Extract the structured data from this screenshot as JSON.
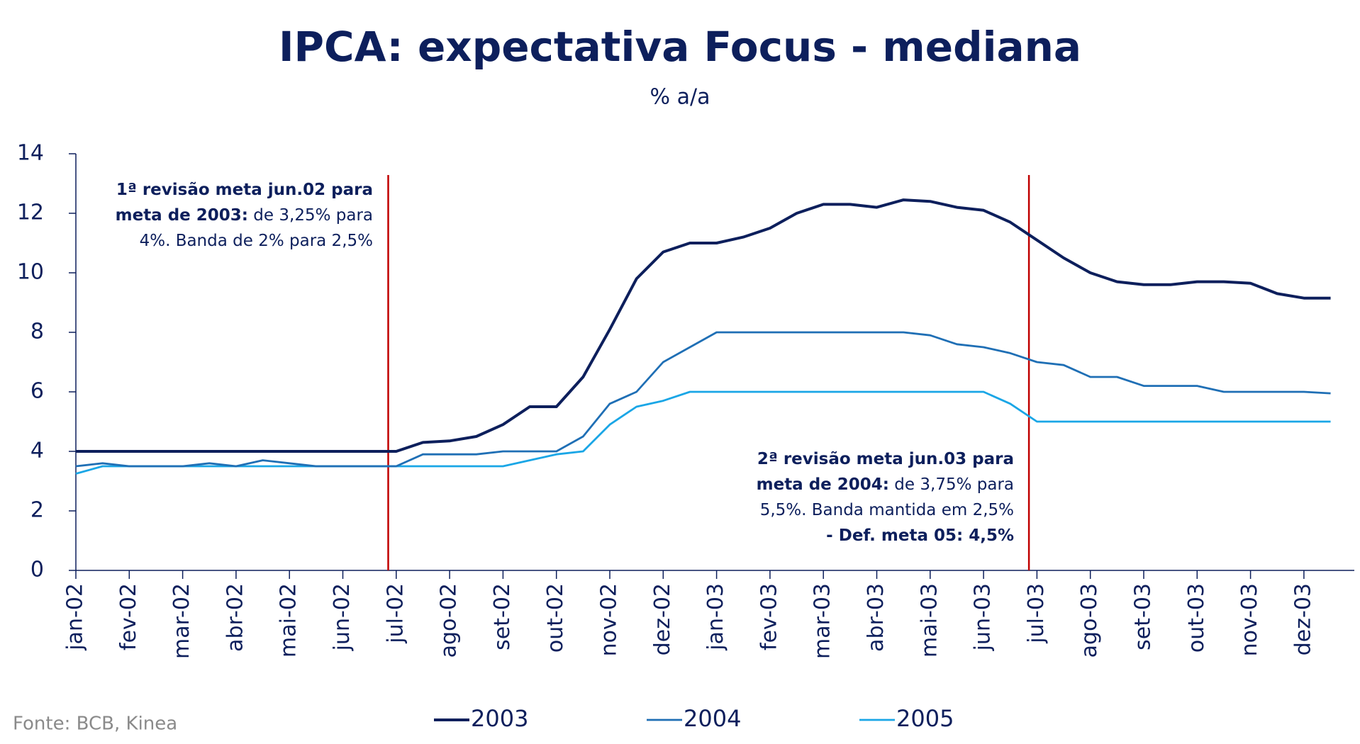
{
  "chart_data": {
    "type": "line",
    "title": "IPCA: expectativa Focus - mediana",
    "subtitle": "% a/a",
    "source": "Fonte: BCB, Kinea",
    "categories": [
      "jan-02",
      null,
      "fev-02",
      null,
      "mar-02",
      null,
      "abr-02",
      null,
      "mai-02",
      null,
      "jun-02",
      null,
      "jul-02",
      null,
      "ago-02",
      null,
      "set-02",
      null,
      "out-02",
      null,
      "nov-02",
      null,
      "dez-02",
      null,
      "jan-03",
      null,
      "fev-03",
      null,
      "mar-03",
      null,
      "abr-03",
      null,
      "mai-03",
      null,
      "jun-03",
      null,
      "jul-03",
      null,
      "ago-03",
      null,
      "set-03",
      null,
      "out-03",
      null,
      "nov-03",
      null,
      "dez-03",
      null
    ],
    "series": [
      {
        "name": "2003",
        "color": "#0d1f5c",
        "values": [
          4,
          4,
          4,
          4,
          4,
          4,
          4,
          4,
          4,
          4,
          4,
          4,
          4.0,
          4.3,
          4.35,
          4.5,
          4.9,
          5.5,
          5.5,
          6.5,
          8.1,
          9.8,
          10.7,
          11.0,
          11.0,
          11.2,
          11.5,
          12.0,
          12.3,
          12.3,
          12.2,
          12.45,
          12.4,
          12.2,
          12.1,
          11.7,
          11.1,
          10.5,
          10.0,
          9.7,
          9.6,
          9.6,
          9.7,
          9.7,
          9.65,
          9.3,
          9.15,
          9.15
        ]
      },
      {
        "name": "2004",
        "color": "#1f6fb5",
        "values": [
          3.5,
          3.6,
          3.5,
          3.5,
          3.5,
          3.6,
          3.5,
          3.7,
          3.6,
          3.5,
          3.5,
          3.5,
          3.5,
          3.9,
          3.9,
          3.9,
          4.0,
          4.0,
          4.0,
          4.5,
          5.6,
          6.0,
          7.0,
          7.5,
          8.0,
          8.0,
          8.0,
          8.0,
          8.0,
          8.0,
          8.0,
          8.0,
          7.9,
          7.6,
          7.5,
          7.3,
          7.0,
          6.9,
          6.5,
          6.5,
          6.2,
          6.2,
          6.2,
          6.0,
          6.0,
          6.0,
          6.0,
          5.95
        ]
      },
      {
        "name": "2005",
        "color": "#1aa6e6",
        "values": [
          3.25,
          3.5,
          3.5,
          3.5,
          3.5,
          3.5,
          3.5,
          3.5,
          3.5,
          3.5,
          3.5,
          3.5,
          3.5,
          3.5,
          3.5,
          3.5,
          3.5,
          3.7,
          3.9,
          4.0,
          4.9,
          5.5,
          5.7,
          6.0,
          6.0,
          6.0,
          6.0,
          6.0,
          6.0,
          6.0,
          6.0,
          6.0,
          6.0,
          6.0,
          6.0,
          5.6,
          5.0,
          5.0,
          5.0,
          5.0,
          5.0,
          5.0,
          5.0,
          5.0,
          5.0,
          5.0,
          5.0,
          5.0
        ]
      }
    ],
    "ylim": [
      0,
      14
    ],
    "yticks": [
      0,
      2,
      4,
      6,
      8,
      10,
      12,
      14
    ],
    "annotations": [
      {
        "bold": "1ª revisão meta jun.02 para meta de 2003:",
        "text": " de 3,25% para 4%. Banda de 2% para 2,5%"
      },
      {
        "bold": "2ª revisão meta jun.03 para meta de 2004:",
        "text": " de 3,75% para 5,5%. Banda mantida em 2,5%",
        "bold2": "- Def. meta 05: 4,5%"
      }
    ]
  }
}
